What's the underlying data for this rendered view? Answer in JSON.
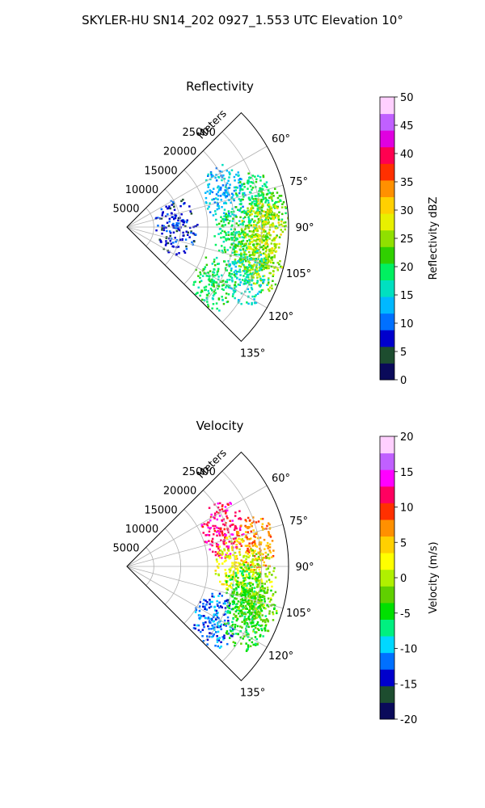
{
  "suptitle": "SKYLER-HU  SN14_202  0927_1.553 UTC Elevation 10°",
  "chart_data": [
    {
      "type": "heatmap",
      "title": "Reflectivity",
      "projection": "polar sector",
      "radial_axis_label": "Meters",
      "radial_ticks": [
        5000,
        10000,
        15000,
        20000,
        25000
      ],
      "radial_tick_labels": [
        "5000",
        "10000",
        "15000",
        "20000",
        "25000"
      ],
      "rlim": [
        0,
        30000
      ],
      "angle_ticks": [
        60,
        75,
        90,
        105,
        120,
        135
      ],
      "angle_tick_labels": [
        "60°",
        "75°",
        "90°",
        "105°",
        "120°",
        "135°"
      ],
      "angle_range": [
        45,
        135
      ],
      "grid": true,
      "colorbar": {
        "label": "Reflectivity dBZ",
        "ticks": [
          0,
          5,
          10,
          15,
          20,
          25,
          30,
          35,
          40,
          45,
          50
        ],
        "range": [
          0,
          50
        ],
        "colors": [
          "#0a0a5a",
          "#1d4d2f",
          "#0000cc",
          "#0070ff",
          "#00b8ff",
          "#00e0c0",
          "#00f060",
          "#30d000",
          "#90e000",
          "#e8f000",
          "#ffd000",
          "#ff9000",
          "#ff3000",
          "#ff0050",
          "#e000e0",
          "#c060ff",
          "#ffd0ff"
        ]
      },
      "echoes": [
        {
          "azimuth": 70,
          "range_m": 19000,
          "dbz": 14
        },
        {
          "azimuth": 78,
          "range_m": 24000,
          "dbz": 18
        },
        {
          "azimuth": 85,
          "range_m": 26000,
          "dbz": 22
        },
        {
          "azimuth": 90,
          "range_m": 25000,
          "dbz": 28
        },
        {
          "azimuth": 95,
          "range_m": 20000,
          "dbz": 20
        },
        {
          "azimuth": 100,
          "range_m": 24000,
          "dbz": 26
        },
        {
          "azimuth": 105,
          "range_m": 26000,
          "dbz": 24
        },
        {
          "azimuth": 112,
          "range_m": 24000,
          "dbz": 16
        },
        {
          "azimuth": 88,
          "range_m": 9000,
          "dbz": 8
        },
        {
          "azimuth": 122,
          "range_m": 19000,
          "dbz": 18
        }
      ]
    },
    {
      "type": "heatmap",
      "title": "Velocity",
      "projection": "polar sector",
      "radial_axis_label": "Meters",
      "radial_ticks": [
        5000,
        10000,
        15000,
        20000,
        25000
      ],
      "radial_tick_labels": [
        "5000",
        "10000",
        "15000",
        "20000",
        "25000"
      ],
      "rlim": [
        0,
        30000
      ],
      "angle_ticks": [
        60,
        75,
        90,
        105,
        120,
        135
      ],
      "angle_tick_labels": [
        "60°",
        "75°",
        "90°",
        "105°",
        "120°",
        "135°"
      ],
      "angle_range": [
        45,
        135
      ],
      "grid": true,
      "colorbar": {
        "label": "Velocity (m/s)",
        "ticks": [
          -20,
          -15,
          -10,
          -5,
          0,
          5,
          10,
          15,
          20
        ],
        "range": [
          -20,
          20
        ],
        "colors": [
          "#0a0a5a",
          "#1d4d2f",
          "#0000cc",
          "#0070ff",
          "#00d8ff",
          "#00f080",
          "#00e000",
          "#60d000",
          "#b0f000",
          "#ffff00",
          "#ffd000",
          "#ff9000",
          "#ff3000",
          "#ff0060",
          "#ff00ff",
          "#c060ff",
          "#ffd0ff"
        ]
      },
      "echoes": [
        {
          "azimuth": 68,
          "range_m": 19000,
          "ms": 12
        },
        {
          "azimuth": 80,
          "range_m": 24000,
          "ms": 8
        },
        {
          "azimuth": 88,
          "range_m": 20000,
          "ms": 2
        },
        {
          "azimuth": 95,
          "range_m": 24000,
          "ms": 0
        },
        {
          "azimuth": 102,
          "range_m": 22000,
          "ms": -4
        },
        {
          "azimuth": 108,
          "range_m": 25000,
          "ms": -3
        },
        {
          "azimuth": 122,
          "range_m": 19000,
          "ms": -12
        },
        {
          "azimuth": 115,
          "range_m": 24000,
          "ms": -5
        }
      ]
    }
  ]
}
